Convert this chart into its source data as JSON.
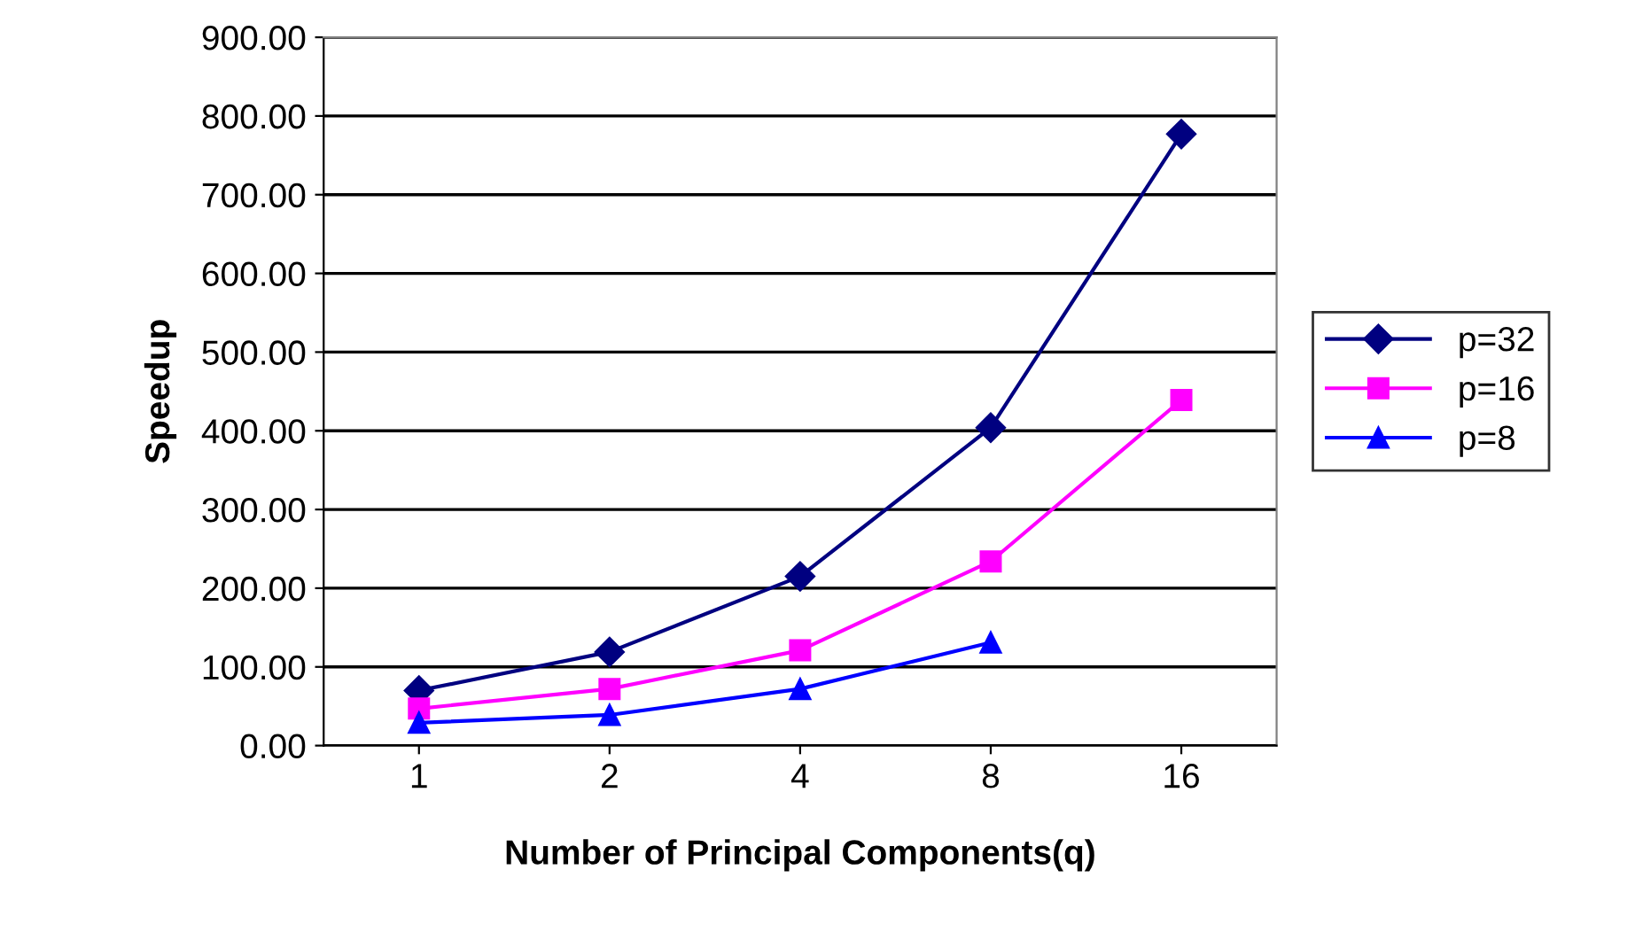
{
  "chart_data": {
    "type": "line",
    "xlabel": "Number of Principal Components(q)",
    "ylabel": "Speedup",
    "categories": [
      "1",
      "2",
      "4",
      "8",
      "16"
    ],
    "series": [
      {
        "name": "p=32",
        "color": "#000080",
        "marker": "diamond",
        "values": [
          70,
          119,
          215,
          404,
          777
        ]
      },
      {
        "name": "p=16",
        "color": "#ff00ff",
        "marker": "square",
        "values": [
          47,
          72,
          121,
          234,
          439
        ]
      },
      {
        "name": "p=8",
        "color": "#0000ff",
        "marker": "triangle",
        "values": [
          29,
          39,
          72,
          131,
          null
        ]
      }
    ],
    "ylim": [
      0,
      900
    ],
    "yticks": [
      {
        "value": 0,
        "label": "0.00"
      },
      {
        "value": 100,
        "label": "100.00"
      },
      {
        "value": 200,
        "label": "200.00"
      },
      {
        "value": 300,
        "label": "300.00"
      },
      {
        "value": 400,
        "label": "400.00"
      },
      {
        "value": 500,
        "label": "500.00"
      },
      {
        "value": 600,
        "label": "600.00"
      },
      {
        "value": 700,
        "label": "700.00"
      },
      {
        "value": 800,
        "label": "800.00"
      },
      {
        "value": 900,
        "label": "900.00"
      }
    ],
    "grid": "y",
    "legend": "right",
    "line_style": "solid"
  }
}
